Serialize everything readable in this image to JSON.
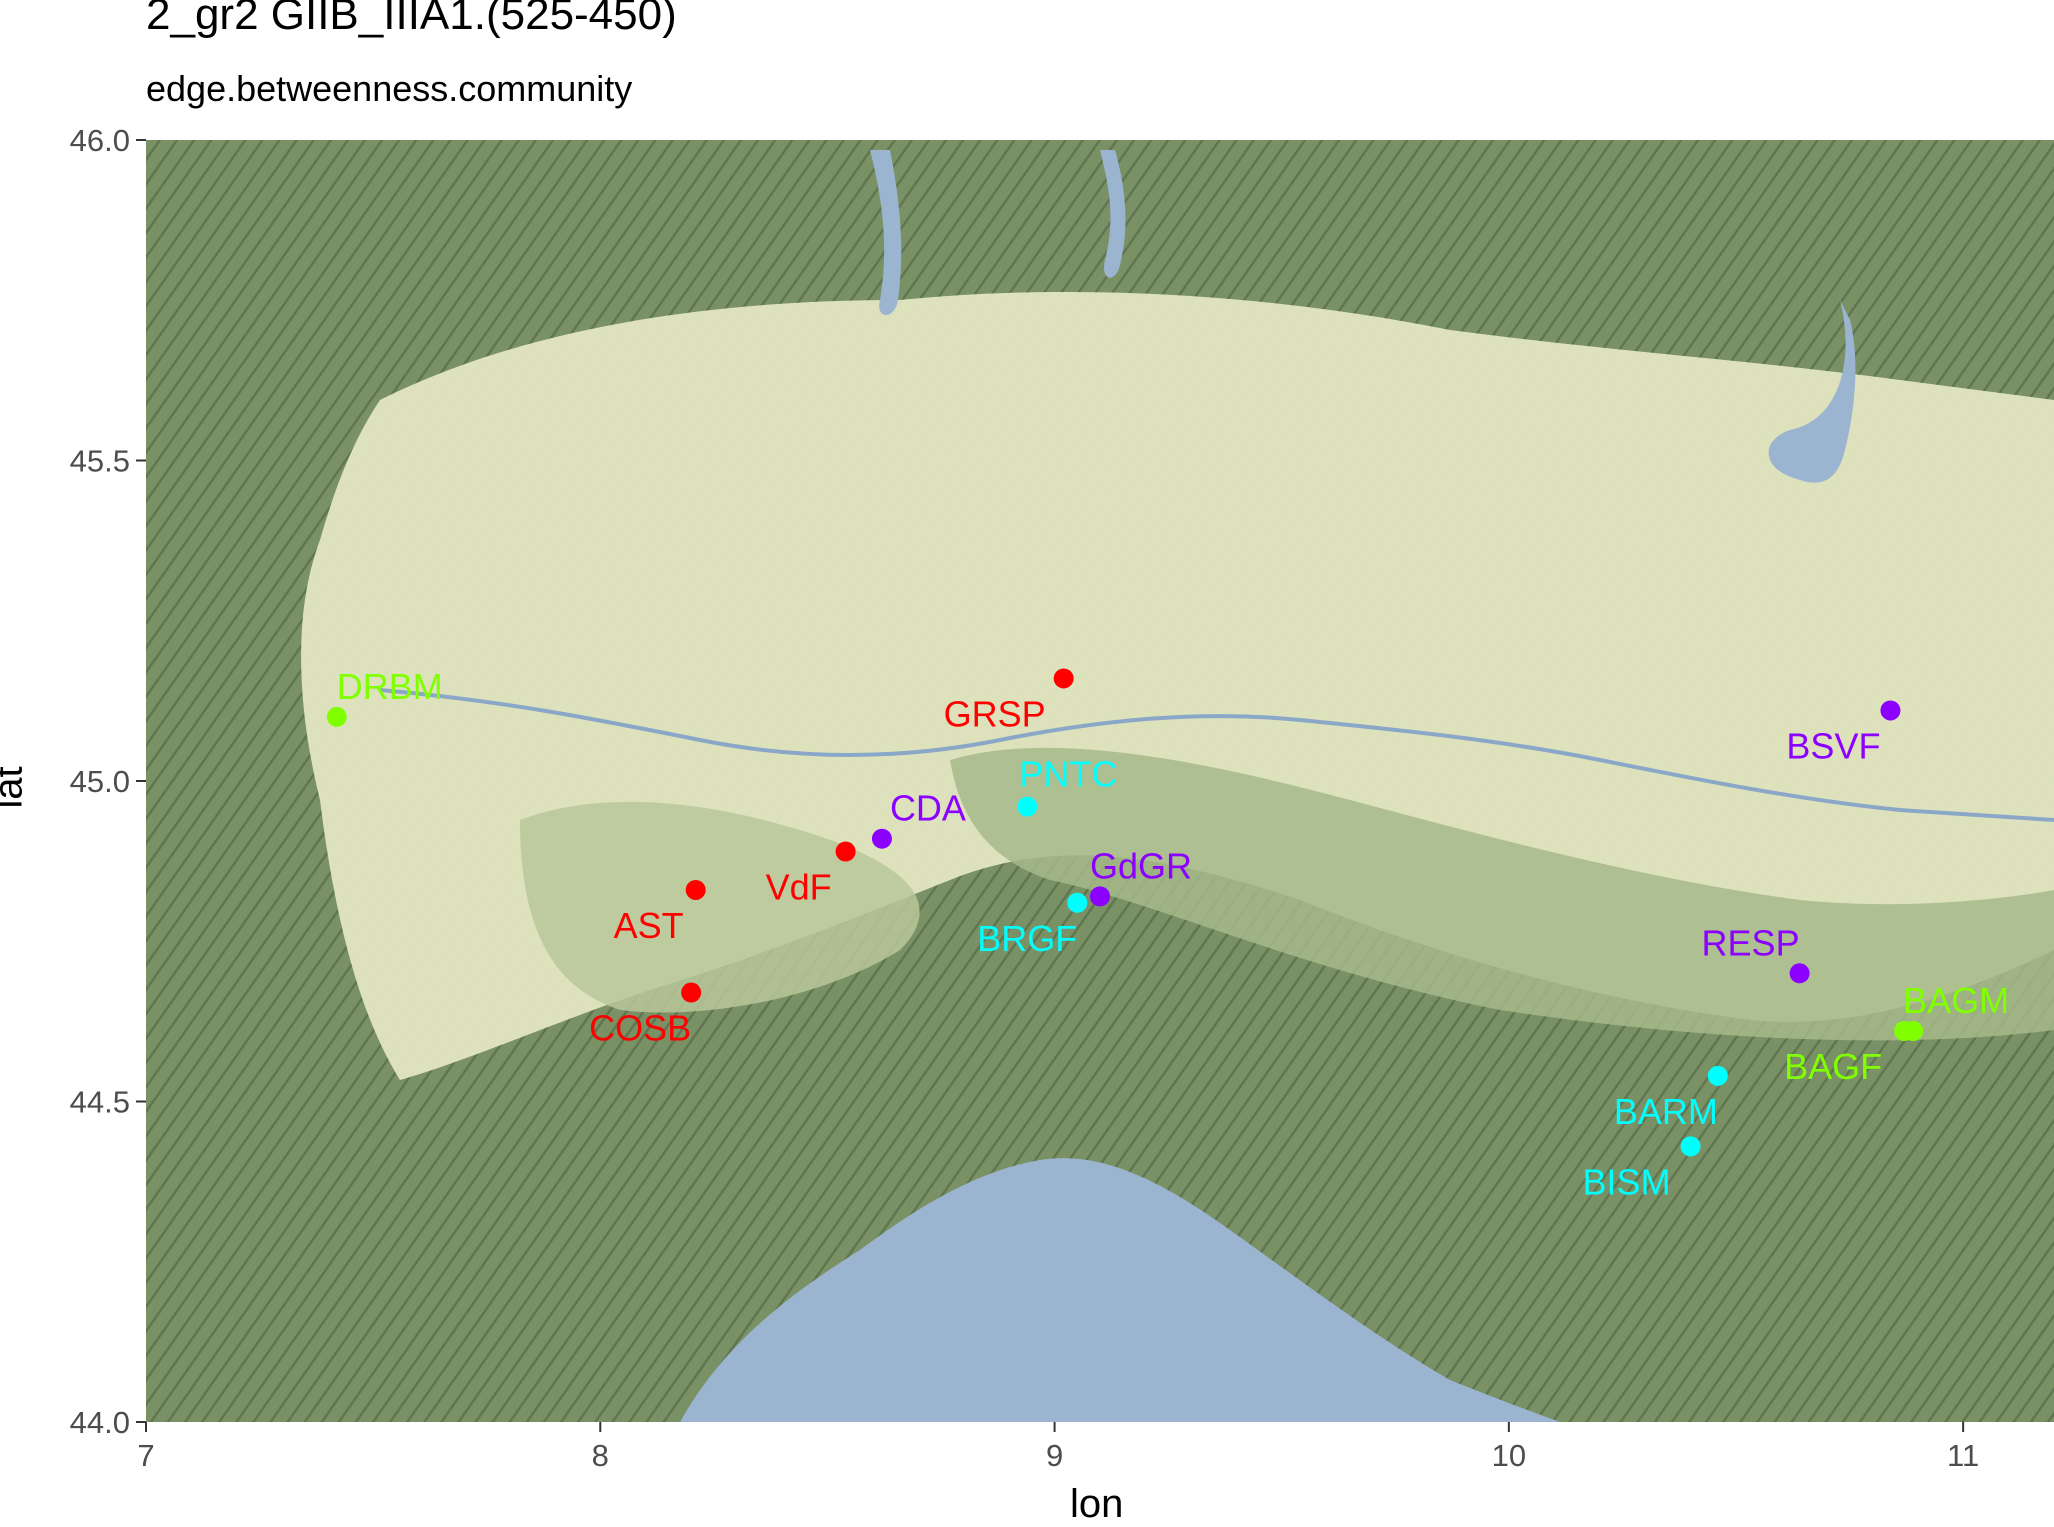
{
  "title": "2_gr2 GIIB_IIIA1.(525-450)",
  "subtitle": "edge.betweenness.community",
  "colors": {
    "red": "#ff0000",
    "purple": "#8b00ff",
    "cyan": "#00ffff",
    "green": "#80ff00",
    "plain": "#e3e8c4",
    "mountain": "#6f8a5c",
    "sea": "#9bb4d0"
  },
  "chart_data": {
    "type": "scatter",
    "title": "2_gr2 GIIB_IIIA1.(525-450)",
    "subtitle": "edge.betweenness.community",
    "xlabel": "lon",
    "ylabel": "lat",
    "xlim": [
      7,
      11.2
    ],
    "ylim": [
      44.0,
      46.0
    ],
    "xticks": [
      "7",
      "8",
      "9",
      "10",
      "11"
    ],
    "yticks": [
      "44.0",
      "44.5",
      "45.0",
      "45.5",
      "46.0"
    ],
    "points": [
      {
        "label": "DRBM",
        "x": 7.42,
        "y": 45.1,
        "color": "#80ff00"
      },
      {
        "label": "GRSP",
        "x": 9.02,
        "y": 45.16,
        "color": "#ff0000"
      },
      {
        "label": "PNTC",
        "x": 8.94,
        "y": 44.96,
        "color": "#00ffff"
      },
      {
        "label": "CDA",
        "x": 8.62,
        "y": 44.91,
        "color": "#8b00ff"
      },
      {
        "label": "VdF",
        "x": 8.54,
        "y": 44.89,
        "color": "#ff0000"
      },
      {
        "label": "AST",
        "x": 8.21,
        "y": 44.83,
        "color": "#ff0000"
      },
      {
        "label": "GdGR",
        "x": 9.1,
        "y": 44.82,
        "color": "#8b00ff"
      },
      {
        "label": "BRGF",
        "x": 9.05,
        "y": 44.81,
        "color": "#00ffff"
      },
      {
        "label": "COSB",
        "x": 8.2,
        "y": 44.67,
        "color": "#ff0000"
      },
      {
        "label": "BSVF",
        "x": 10.84,
        "y": 45.11,
        "color": "#8b00ff"
      },
      {
        "label": "RESP",
        "x": 10.64,
        "y": 44.7,
        "color": "#8b00ff"
      },
      {
        "label": "BAGM",
        "x": 10.89,
        "y": 44.61,
        "color": "#80ff00"
      },
      {
        "label": "BAGF",
        "x": 10.87,
        "y": 44.61,
        "color": "#80ff00"
      },
      {
        "label": "BARM",
        "x": 10.46,
        "y": 44.54,
        "color": "#00ffff"
      },
      {
        "label": "BISM",
        "x": 10.4,
        "y": 44.43,
        "color": "#00ffff"
      }
    ]
  }
}
